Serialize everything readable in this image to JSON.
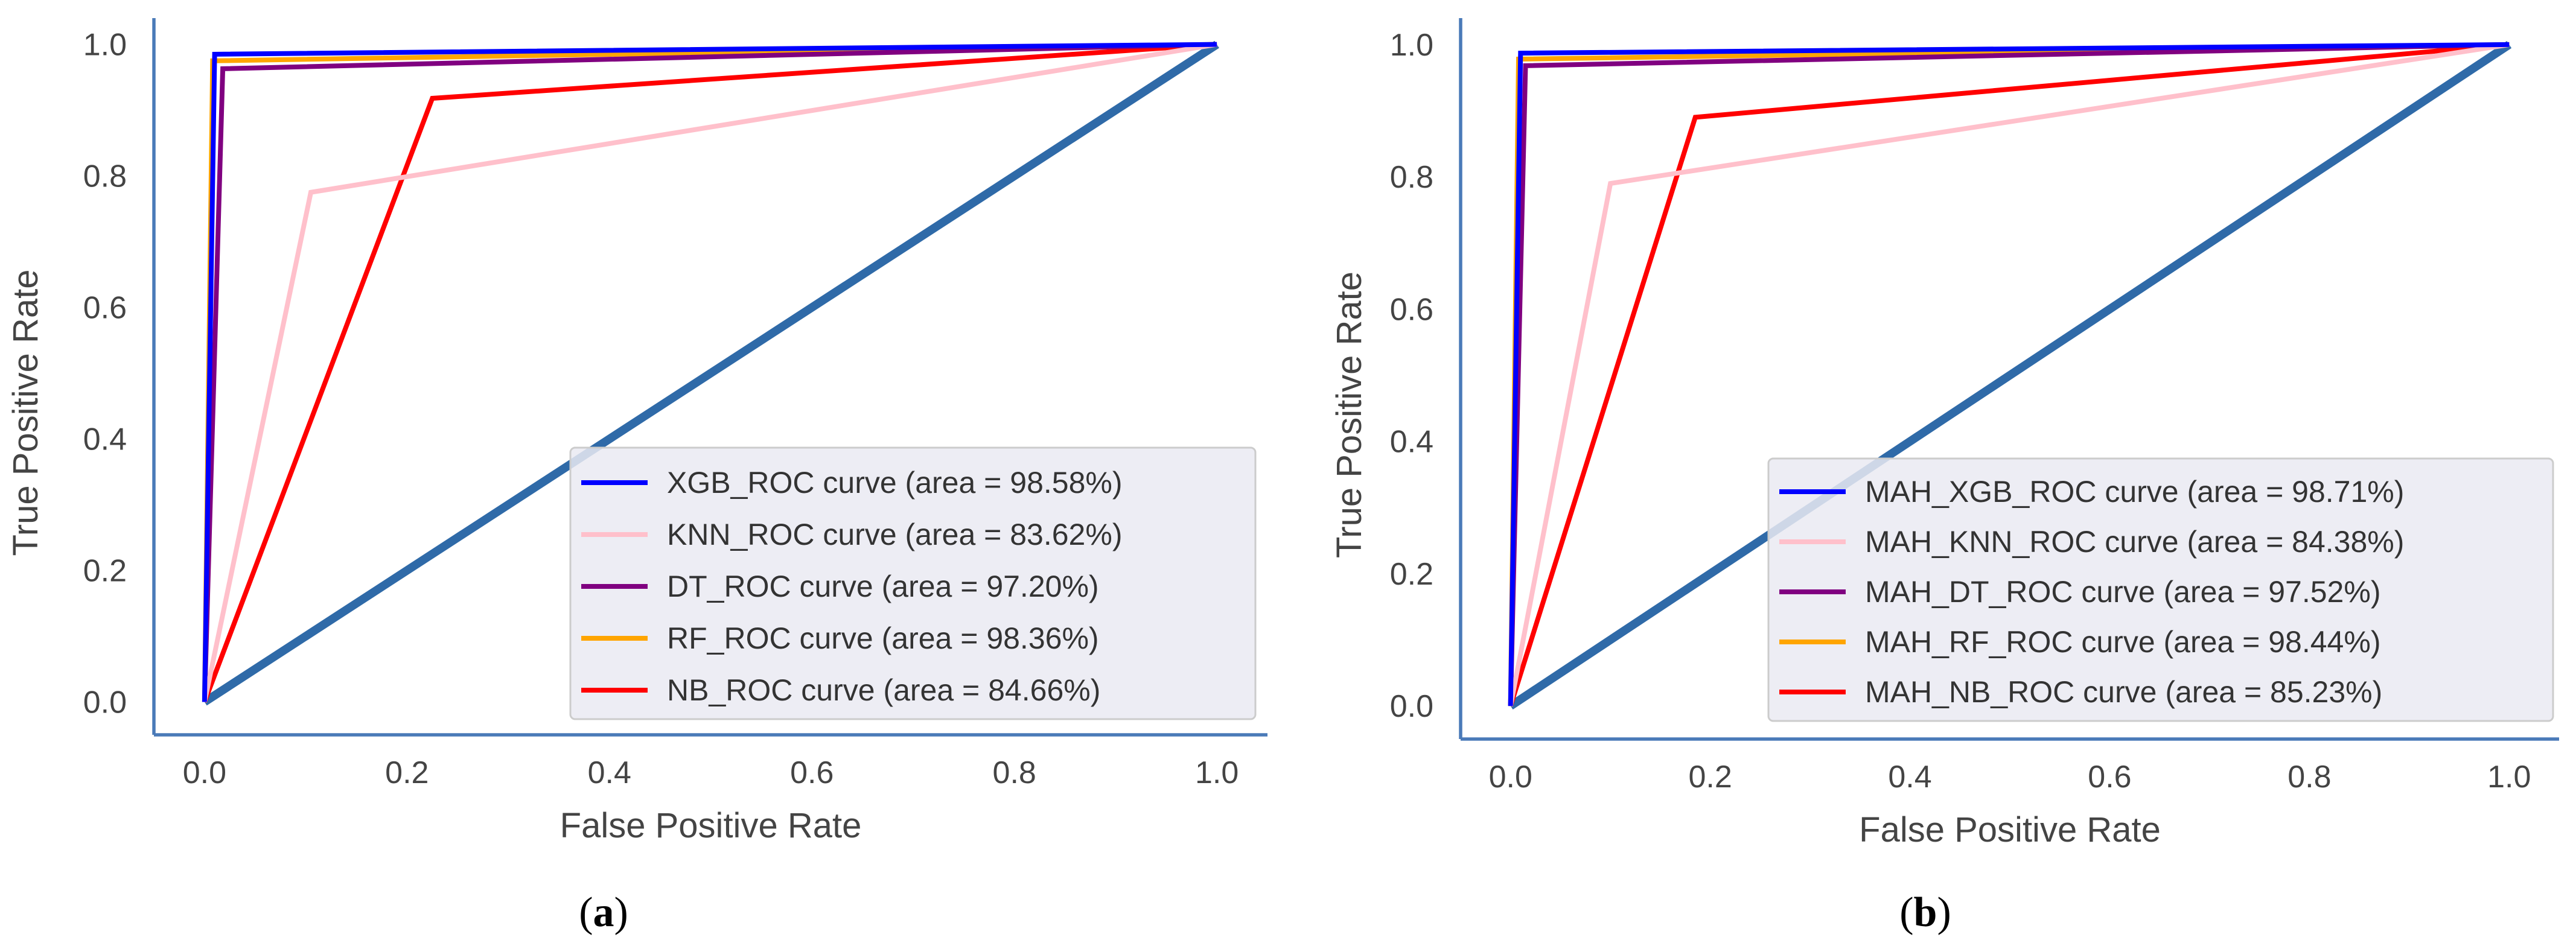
{
  "chart_data": [
    {
      "type": "line",
      "panel_label": "a",
      "xlabel": "False Positive Rate",
      "ylabel": "True Positive Rate",
      "xlim": [
        -0.05,
        1.05
      ],
      "ylim": [
        -0.05,
        1.04
      ],
      "xticks": [
        "0.0",
        "0.2",
        "0.4",
        "0.6",
        "0.8",
        "1.0"
      ],
      "yticks": [
        "0.0",
        "0.2",
        "0.4",
        "0.6",
        "0.8",
        "1.0"
      ],
      "grid": false,
      "legend_position": "lower-right",
      "diagonal": {
        "x": [
          0,
          1
        ],
        "y": [
          0,
          1
        ],
        "color": "#2f6aa8"
      },
      "series": [
        {
          "name": "XGB_ROC curve (area = 98.58%)",
          "color": "#0000ff",
          "x": [
            0,
            0.01,
            1
          ],
          "y": [
            0,
            0.985,
            1
          ]
        },
        {
          "name": "KNN_ROC curve (area = 83.62%)",
          "color": "#ffc0cb",
          "x": [
            0,
            0.105,
            1
          ],
          "y": [
            0,
            0.775,
            1
          ]
        },
        {
          "name": "DT_ROC curve (area = 97.20%)",
          "color": "#800080",
          "x": [
            0,
            0.018,
            1
          ],
          "y": [
            0,
            0.963,
            1
          ]
        },
        {
          "name": "RF_ROC curve (area = 98.36%)",
          "color": "#ffa500",
          "x": [
            0,
            0.008,
            1
          ],
          "y": [
            0,
            0.975,
            1
          ]
        },
        {
          "name": "NB_ROC curve (area = 84.66%)",
          "color": "#ff0000",
          "x": [
            0,
            0.225,
            1
          ],
          "y": [
            0,
            0.918,
            1
          ]
        }
      ]
    },
    {
      "type": "line",
      "panel_label": "b",
      "xlabel": "False Positive Rate",
      "ylabel": "True Positive Rate",
      "xlim": [
        -0.05,
        1.05
      ],
      "ylim": [
        -0.05,
        1.04
      ],
      "xticks": [
        "0.0",
        "0.2",
        "0.4",
        "0.6",
        "0.8",
        "1.0"
      ],
      "yticks": [
        "0.0",
        "0.2",
        "0.4",
        "0.6",
        "0.8",
        "1.0"
      ],
      "grid": false,
      "legend_position": "lower-right",
      "diagonal": {
        "x": [
          0,
          1
        ],
        "y": [
          0,
          1
        ],
        "color": "#2f6aa8"
      },
      "series": [
        {
          "name": "MAH_XGB_ROC curve (area = 98.71%)",
          "color": "#0000ff",
          "x": [
            0,
            0.01,
            1
          ],
          "y": [
            0,
            0.987,
            1
          ]
        },
        {
          "name": "MAH_KNN_ROC curve (area = 84.38%)",
          "color": "#ffc0cb",
          "x": [
            0,
            0.1,
            1
          ],
          "y": [
            0,
            0.79,
            1
          ]
        },
        {
          "name": "MAH_DT_ROC curve (area = 97.52%)",
          "color": "#800080",
          "x": [
            0,
            0.015,
            1
          ],
          "y": [
            0,
            0.968,
            1
          ]
        },
        {
          "name": "MAH_RF_ROC curve (area = 98.44%)",
          "color": "#ffa500",
          "x": [
            0,
            0.008,
            1
          ],
          "y": [
            0,
            0.978,
            1
          ]
        },
        {
          "name": "MAH_NB_ROC curve (area = 85.23%)",
          "color": "#ff0000",
          "x": [
            0,
            0.185,
            1
          ],
          "y": [
            0,
            0.89,
            1
          ]
        }
      ]
    }
  ]
}
